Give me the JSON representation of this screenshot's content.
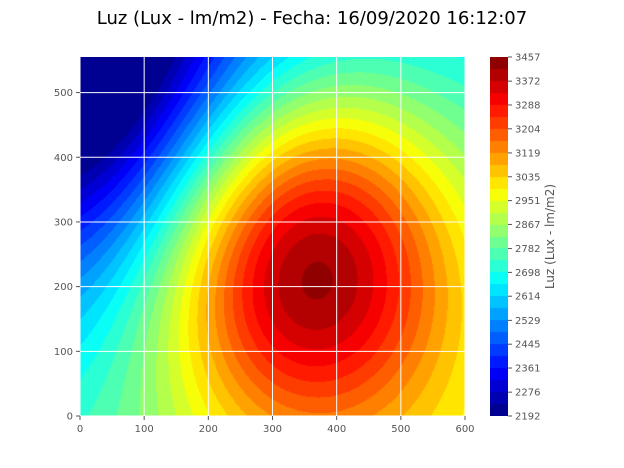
{
  "chart_data": {
    "type": "heatmap",
    "subtype": "filled-contour",
    "title": "Luz (Lux - lm/m2) - Fecha: 16/09/2020 16:12:07",
    "xlabel": "",
    "ylabel": "",
    "xlim": [
      0,
      600
    ],
    "ylim": [
      0,
      555
    ],
    "x_ticks": [
      "0",
      "100",
      "200",
      "300",
      "400",
      "500",
      "600"
    ],
    "y_ticks": [
      "0",
      "100",
      "200",
      "300",
      "400",
      "500"
    ],
    "grid": true,
    "colormap": "jet",
    "colorbar": {
      "label": "Luz (Lux - lm/m2)",
      "min": 2192,
      "max": 3457,
      "levels": 30,
      "ticks": [
        "3457",
        "3372",
        "3288",
        "3204",
        "3119",
        "3035",
        "2951",
        "2867",
        "2782",
        "2698",
        "2614",
        "2529",
        "2445",
        "2361",
        "2276",
        "2192"
      ]
    },
    "peak": {
      "x": 350,
      "y": 240,
      "value": 3457
    },
    "low": {
      "x": 0,
      "y": 555,
      "value": 2192
    }
  }
}
